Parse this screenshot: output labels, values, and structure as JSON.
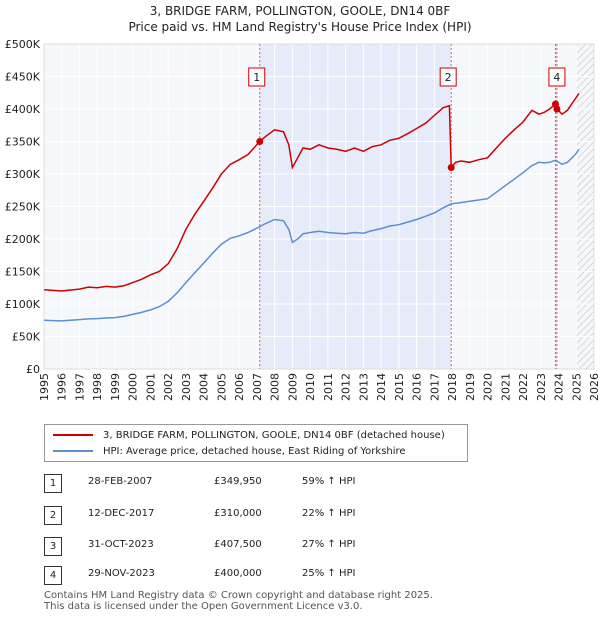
{
  "chart_data": {
    "type": "line",
    "title": "3, BRIDGE FARM, POLLINGTON, GOOLE, DN14 0BF",
    "subtitle": "Price paid vs. HM Land Registry's House Price Index (HPI)",
    "xlim": [
      1995,
      2026
    ],
    "ylim": [
      0,
      500000
    ],
    "x_ticks": [
      1995,
      1996,
      1997,
      1998,
      1999,
      2000,
      2001,
      2002,
      2003,
      2004,
      2005,
      2006,
      2007,
      2008,
      2009,
      2010,
      2011,
      2012,
      2013,
      2014,
      2015,
      2016,
      2017,
      2018,
      2019,
      2020,
      2021,
      2022,
      2023,
      2024,
      2025,
      2026
    ],
    "y_ticks": [
      {
        "value": 0,
        "label": "£0"
      },
      {
        "value": 50000,
        "label": "£50K"
      },
      {
        "value": 100000,
        "label": "£100K"
      },
      {
        "value": 150000,
        "label": "£150K"
      },
      {
        "value": 200000,
        "label": "£200K"
      },
      {
        "value": 250000,
        "label": "£250K"
      },
      {
        "value": 300000,
        "label": "£300K"
      },
      {
        "value": 350000,
        "label": "£350K"
      },
      {
        "value": 400000,
        "label": "£400K"
      },
      {
        "value": 450000,
        "label": "£450K"
      },
      {
        "value": 500000,
        "label": "£500K"
      }
    ],
    "grid": true,
    "shaded_ranges": [
      [
        2007.16,
        2017.95
      ],
      [
        2023.83,
        2023.91
      ]
    ],
    "future_hatch_from": 2025.0,
    "series": [
      {
        "name": "3, BRIDGE FARM, POLLINGTON, GOOLE, DN14 0BF (detached house)",
        "color": "#cc0000",
        "points": [
          [
            1995.0,
            122000
          ],
          [
            1995.5,
            121000
          ],
          [
            1996.0,
            120000
          ],
          [
            1996.5,
            121500
          ],
          [
            1997.0,
            123000
          ],
          [
            1997.5,
            126000
          ],
          [
            1998.0,
            125000
          ],
          [
            1998.5,
            127000
          ],
          [
            1999.0,
            126000
          ],
          [
            1999.5,
            128000
          ],
          [
            2000.0,
            133000
          ],
          [
            2000.5,
            138000
          ],
          [
            2001.0,
            145000
          ],
          [
            2001.5,
            150000
          ],
          [
            2002.0,
            162000
          ],
          [
            2002.5,
            185000
          ],
          [
            2003.0,
            215000
          ],
          [
            2003.5,
            238000
          ],
          [
            2004.0,
            258000
          ],
          [
            2004.5,
            278000
          ],
          [
            2005.0,
            300000
          ],
          [
            2005.5,
            315000
          ],
          [
            2006.0,
            322000
          ],
          [
            2006.5,
            330000
          ],
          [
            2007.16,
            349950
          ],
          [
            2007.5,
            358000
          ],
          [
            2008.0,
            368000
          ],
          [
            2008.5,
            365000
          ],
          [
            2008.8,
            345000
          ],
          [
            2009.0,
            310000
          ],
          [
            2009.3,
            325000
          ],
          [
            2009.6,
            340000
          ],
          [
            2010.0,
            338000
          ],
          [
            2010.5,
            345000
          ],
          [
            2011.0,
            340000
          ],
          [
            2011.5,
            338000
          ],
          [
            2012.0,
            335000
          ],
          [
            2012.5,
            340000
          ],
          [
            2013.0,
            335000
          ],
          [
            2013.5,
            342000
          ],
          [
            2014.0,
            345000
          ],
          [
            2014.5,
            352000
          ],
          [
            2015.0,
            355000
          ],
          [
            2015.5,
            362000
          ],
          [
            2016.0,
            370000
          ],
          [
            2016.5,
            378000
          ],
          [
            2017.0,
            390000
          ],
          [
            2017.5,
            402000
          ],
          [
            2017.85,
            405000
          ],
          [
            2017.95,
            310000
          ],
          [
            2018.2,
            318000
          ],
          [
            2018.5,
            320000
          ],
          [
            2019.0,
            318000
          ],
          [
            2019.5,
            322000
          ],
          [
            2020.0,
            325000
          ],
          [
            2020.5,
            340000
          ],
          [
            2021.0,
            355000
          ],
          [
            2021.5,
            368000
          ],
          [
            2022.0,
            380000
          ],
          [
            2022.5,
            398000
          ],
          [
            2022.9,
            392000
          ],
          [
            2023.2,
            395000
          ],
          [
            2023.5,
            400000
          ],
          [
            2023.83,
            407500
          ],
          [
            2023.91,
            400000
          ],
          [
            2024.2,
            392000
          ],
          [
            2024.5,
            398000
          ],
          [
            2024.8,
            410000
          ],
          [
            2025.0,
            418000
          ],
          [
            2025.15,
            424000
          ]
        ]
      },
      {
        "name": "HPI: Average price, detached house, East Riding of Yorkshire",
        "color": "#5b8fd1",
        "points": [
          [
            1995.0,
            75000
          ],
          [
            1995.5,
            74500
          ],
          [
            1996.0,
            74000
          ],
          [
            1996.5,
            75000
          ],
          [
            1997.0,
            76000
          ],
          [
            1997.5,
            77000
          ],
          [
            1998.0,
            77500
          ],
          [
            1998.5,
            78500
          ],
          [
            1999.0,
            79000
          ],
          [
            1999.5,
            81000
          ],
          [
            2000.0,
            84000
          ],
          [
            2000.5,
            87000
          ],
          [
            2001.0,
            91000
          ],
          [
            2001.5,
            96000
          ],
          [
            2002.0,
            104000
          ],
          [
            2002.5,
            117000
          ],
          [
            2003.0,
            133000
          ],
          [
            2003.5,
            148000
          ],
          [
            2004.0,
            163000
          ],
          [
            2004.5,
            178000
          ],
          [
            2005.0,
            192000
          ],
          [
            2005.5,
            201000
          ],
          [
            2006.0,
            205000
          ],
          [
            2006.5,
            210000
          ],
          [
            2007.16,
            219000
          ],
          [
            2007.5,
            224000
          ],
          [
            2008.0,
            230000
          ],
          [
            2008.5,
            228000
          ],
          [
            2008.8,
            215000
          ],
          [
            2009.0,
            195000
          ],
          [
            2009.3,
            200000
          ],
          [
            2009.6,
            208000
          ],
          [
            2010.0,
            210000
          ],
          [
            2010.5,
            212000
          ],
          [
            2011.0,
            210000
          ],
          [
            2011.5,
            209000
          ],
          [
            2012.0,
            208000
          ],
          [
            2012.5,
            210000
          ],
          [
            2013.0,
            209000
          ],
          [
            2013.5,
            213000
          ],
          [
            2014.0,
            216000
          ],
          [
            2014.5,
            220000
          ],
          [
            2015.0,
            222000
          ],
          [
            2015.5,
            226000
          ],
          [
            2016.0,
            230000
          ],
          [
            2016.5,
            235000
          ],
          [
            2017.0,
            240000
          ],
          [
            2017.5,
            248000
          ],
          [
            2017.95,
            254000
          ],
          [
            2018.5,
            256000
          ],
          [
            2019.0,
            258000
          ],
          [
            2019.5,
            260000
          ],
          [
            2020.0,
            262000
          ],
          [
            2020.5,
            272000
          ],
          [
            2021.0,
            282000
          ],
          [
            2021.5,
            292000
          ],
          [
            2022.0,
            302000
          ],
          [
            2022.5,
            313000
          ],
          [
            2022.9,
            318000
          ],
          [
            2023.2,
            317000
          ],
          [
            2023.5,
            318000
          ],
          [
            2023.83,
            321000
          ],
          [
            2023.91,
            320000
          ],
          [
            2024.2,
            315000
          ],
          [
            2024.5,
            318000
          ],
          [
            2024.8,
            326000
          ],
          [
            2025.0,
            332000
          ],
          [
            2025.15,
            338000
          ]
        ]
      }
    ],
    "sales": [
      {
        "label": "1",
        "date": "28-FEB-2007",
        "x": 2007.16,
        "price": 349950,
        "price_label": "£349,950",
        "change": "59% ↑ HPI"
      },
      {
        "label": "2",
        "date": "12-DEC-2017",
        "x": 2017.95,
        "price": 310000,
        "price_label": "£310,000",
        "change": "22% ↑ HPI"
      },
      {
        "label": "3",
        "date": "31-OCT-2023",
        "x": 2023.83,
        "price": 407500,
        "price_label": "£407,500",
        "change": "27% ↑ HPI"
      },
      {
        "label": "4",
        "date": "29-NOV-2023",
        "x": 2023.91,
        "price": 400000,
        "price_label": "£400,000",
        "change": "25% ↑ HPI"
      }
    ],
    "chart_markers": [
      "1",
      "2",
      "4"
    ]
  },
  "footer": {
    "line1": "Contains HM Land Registry data © Crown copyright and database right 2025.",
    "line2": "This data is licensed under the Open Government Licence v3.0."
  }
}
